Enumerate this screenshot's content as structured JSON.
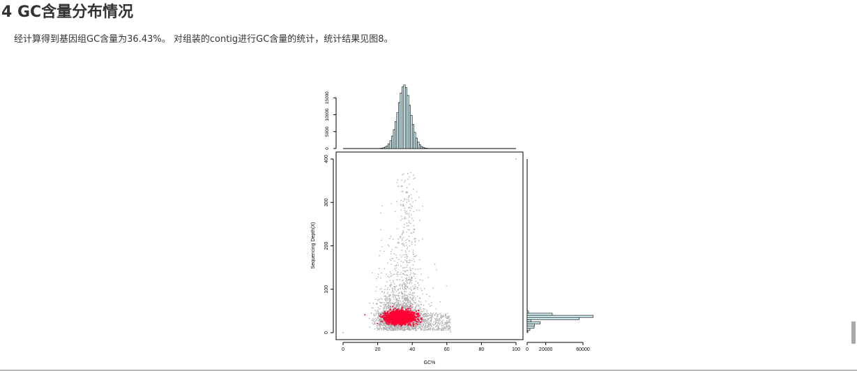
{
  "section": {
    "heading": "4 GC含量分布情况",
    "description": "经计算得到基因组GC含量为36.43%。 对组装的contig进行GC含量的统计，统计结果见图8。"
  },
  "chart_data": {
    "type": "scatter",
    "title": "",
    "xlabel": "GC%",
    "ylabel": "Sequencing Depth(X)",
    "xlim": [
      0,
      100
    ],
    "ylim": [
      0,
      400
    ],
    "x_ticks": [
      0,
      20,
      40,
      60,
      80,
      100
    ],
    "y_ticks": [
      0,
      100,
      200,
      300,
      400
    ],
    "x_tick_labels": [
      "0",
      "20",
      "40",
      "60",
      "80",
      "100"
    ],
    "y_tick_labels": [
      "0",
      "100",
      "200",
      "300",
      "400"
    ],
    "point_color": "#b0b0b0",
    "density_color": "#ff0033",
    "scatter_summary": {
      "dense_core": {
        "gc_center": 33,
        "gc_spread": 5,
        "depth_center": 35,
        "depth_spread": 10
      },
      "outlier_points": [
        [
          100,
          400
        ],
        [
          0,
          0
        ],
        [
          62,
          2
        ]
      ]
    },
    "top_histogram": {
      "type": "bar",
      "ylim": [
        0,
        20000
      ],
      "y_ticks": [
        0,
        5000,
        10000,
        15000
      ],
      "y_tick_labels": [
        "0",
        "5000",
        "10000",
        "15000"
      ],
      "bin_width": 1,
      "bin_start": 20,
      "counts": [
        30,
        60,
        120,
        250,
        450,
        800,
        1400,
        2300,
        3700,
        5600,
        8000,
        10600,
        13600,
        16400,
        18200,
        18800,
        18000,
        15700,
        12800,
        9800,
        7100,
        4800,
        3100,
        1900,
        1100,
        600,
        320,
        160,
        80,
        40,
        20,
        10,
        5
      ]
    },
    "side_histogram": {
      "type": "bar",
      "orientation": "horizontal",
      "xlim": [
        0,
        72000
      ],
      "x_ticks": [
        0,
        20000,
        60000
      ],
      "x_tick_labels": [
        "0",
        "20000",
        "60000"
      ],
      "bin_width": 5,
      "bins": [
        {
          "depth": 0,
          "count": 800
        },
        {
          "depth": 5,
          "count": 3000
        },
        {
          "depth": 10,
          "count": 7500
        },
        {
          "depth": 15,
          "count": 7800
        },
        {
          "depth": 20,
          "count": 14000
        },
        {
          "depth": 25,
          "count": 4000
        },
        {
          "depth": 30,
          "count": 56000
        },
        {
          "depth": 35,
          "count": 71000
        },
        {
          "depth": 40,
          "count": 27000
        },
        {
          "depth": 45,
          "count": 1500
        }
      ]
    }
  }
}
